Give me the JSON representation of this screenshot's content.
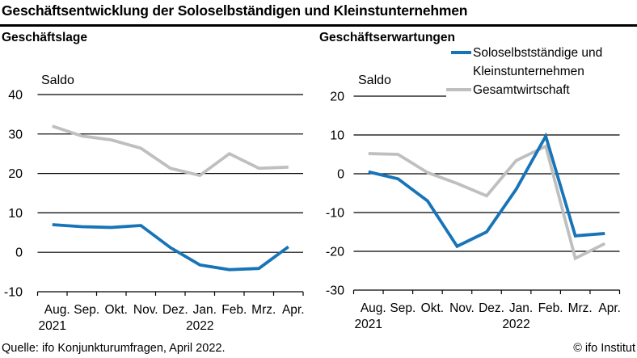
{
  "title": "Geschäftsentwicklung der Soloselbständigen und Kleinstunternehmen",
  "footer": {
    "source": "Quelle: ifo Konjunkturumfragen, April 2022.",
    "copyright": "© ifo Institut"
  },
  "colors": {
    "series_blue": "#1874b8",
    "series_gray": "#bfbfbf",
    "axis": "#000000"
  },
  "legend": {
    "position": "top-right",
    "items": [
      {
        "label": "Soloselbstständige und Kleinstunternehmen",
        "color": "#1874b8"
      },
      {
        "label": "Gesamtwirtschaft",
        "color": "#bfbfbf"
      }
    ]
  },
  "chart_data": [
    {
      "type": "line",
      "title": "Geschäftslage",
      "ylabel": "Saldo",
      "grid": true,
      "categories": [
        "Aug.",
        "Sep.",
        "Okt.",
        "Nov.",
        "Dez.",
        "Jan.",
        "Feb.",
        "Mrz.",
        "Apr."
      ],
      "year_labels": [
        {
          "text": "2021",
          "month_index": 0
        },
        {
          "text": "2022",
          "month_index": 5
        }
      ],
      "ylim": [
        -10,
        40
      ],
      "yticks": [
        40,
        30,
        20,
        10,
        0,
        -10
      ],
      "series": [
        {
          "name": "Soloselbstständige und Kleinstunternehmen",
          "color": "#1874b8",
          "values": [
            7.0,
            6.5,
            6.3,
            6.8,
            1.2,
            -3.2,
            -4.4,
            -4.1,
            1.4
          ]
        },
        {
          "name": "Gesamtwirtschaft",
          "color": "#bfbfbf",
          "values": [
            32.0,
            29.5,
            28.5,
            26.4,
            21.3,
            19.5,
            25.0,
            21.3,
            21.6
          ]
        }
      ]
    },
    {
      "type": "line",
      "title": "Geschäftserwartungen",
      "ylabel": "Saldo",
      "grid": true,
      "categories": [
        "Aug.",
        "Sep.",
        "Okt.",
        "Nov.",
        "Dez.",
        "Jan.",
        "Feb.",
        "Mrz.",
        "Apr."
      ],
      "year_labels": [
        {
          "text": "2021",
          "month_index": 0
        },
        {
          "text": "2022",
          "month_index": 5
        }
      ],
      "ylim": [
        -30,
        20
      ],
      "yticks": [
        20,
        10,
        0,
        -10,
        -20,
        -30
      ],
      "series": [
        {
          "name": "Soloselbstständige und Kleinstunternehmen",
          "color": "#1874b8",
          "values": [
            0.5,
            -1.3,
            -7.0,
            -18.7,
            -15.0,
            -4.0,
            9.7,
            -16.0,
            -15.4
          ]
        },
        {
          "name": "Gesamtwirtschaft",
          "color": "#bfbfbf",
          "values": [
            5.2,
            5.0,
            0.3,
            -2.5,
            -5.7,
            3.4,
            7.1,
            -21.8,
            -18.0
          ]
        }
      ]
    }
  ]
}
